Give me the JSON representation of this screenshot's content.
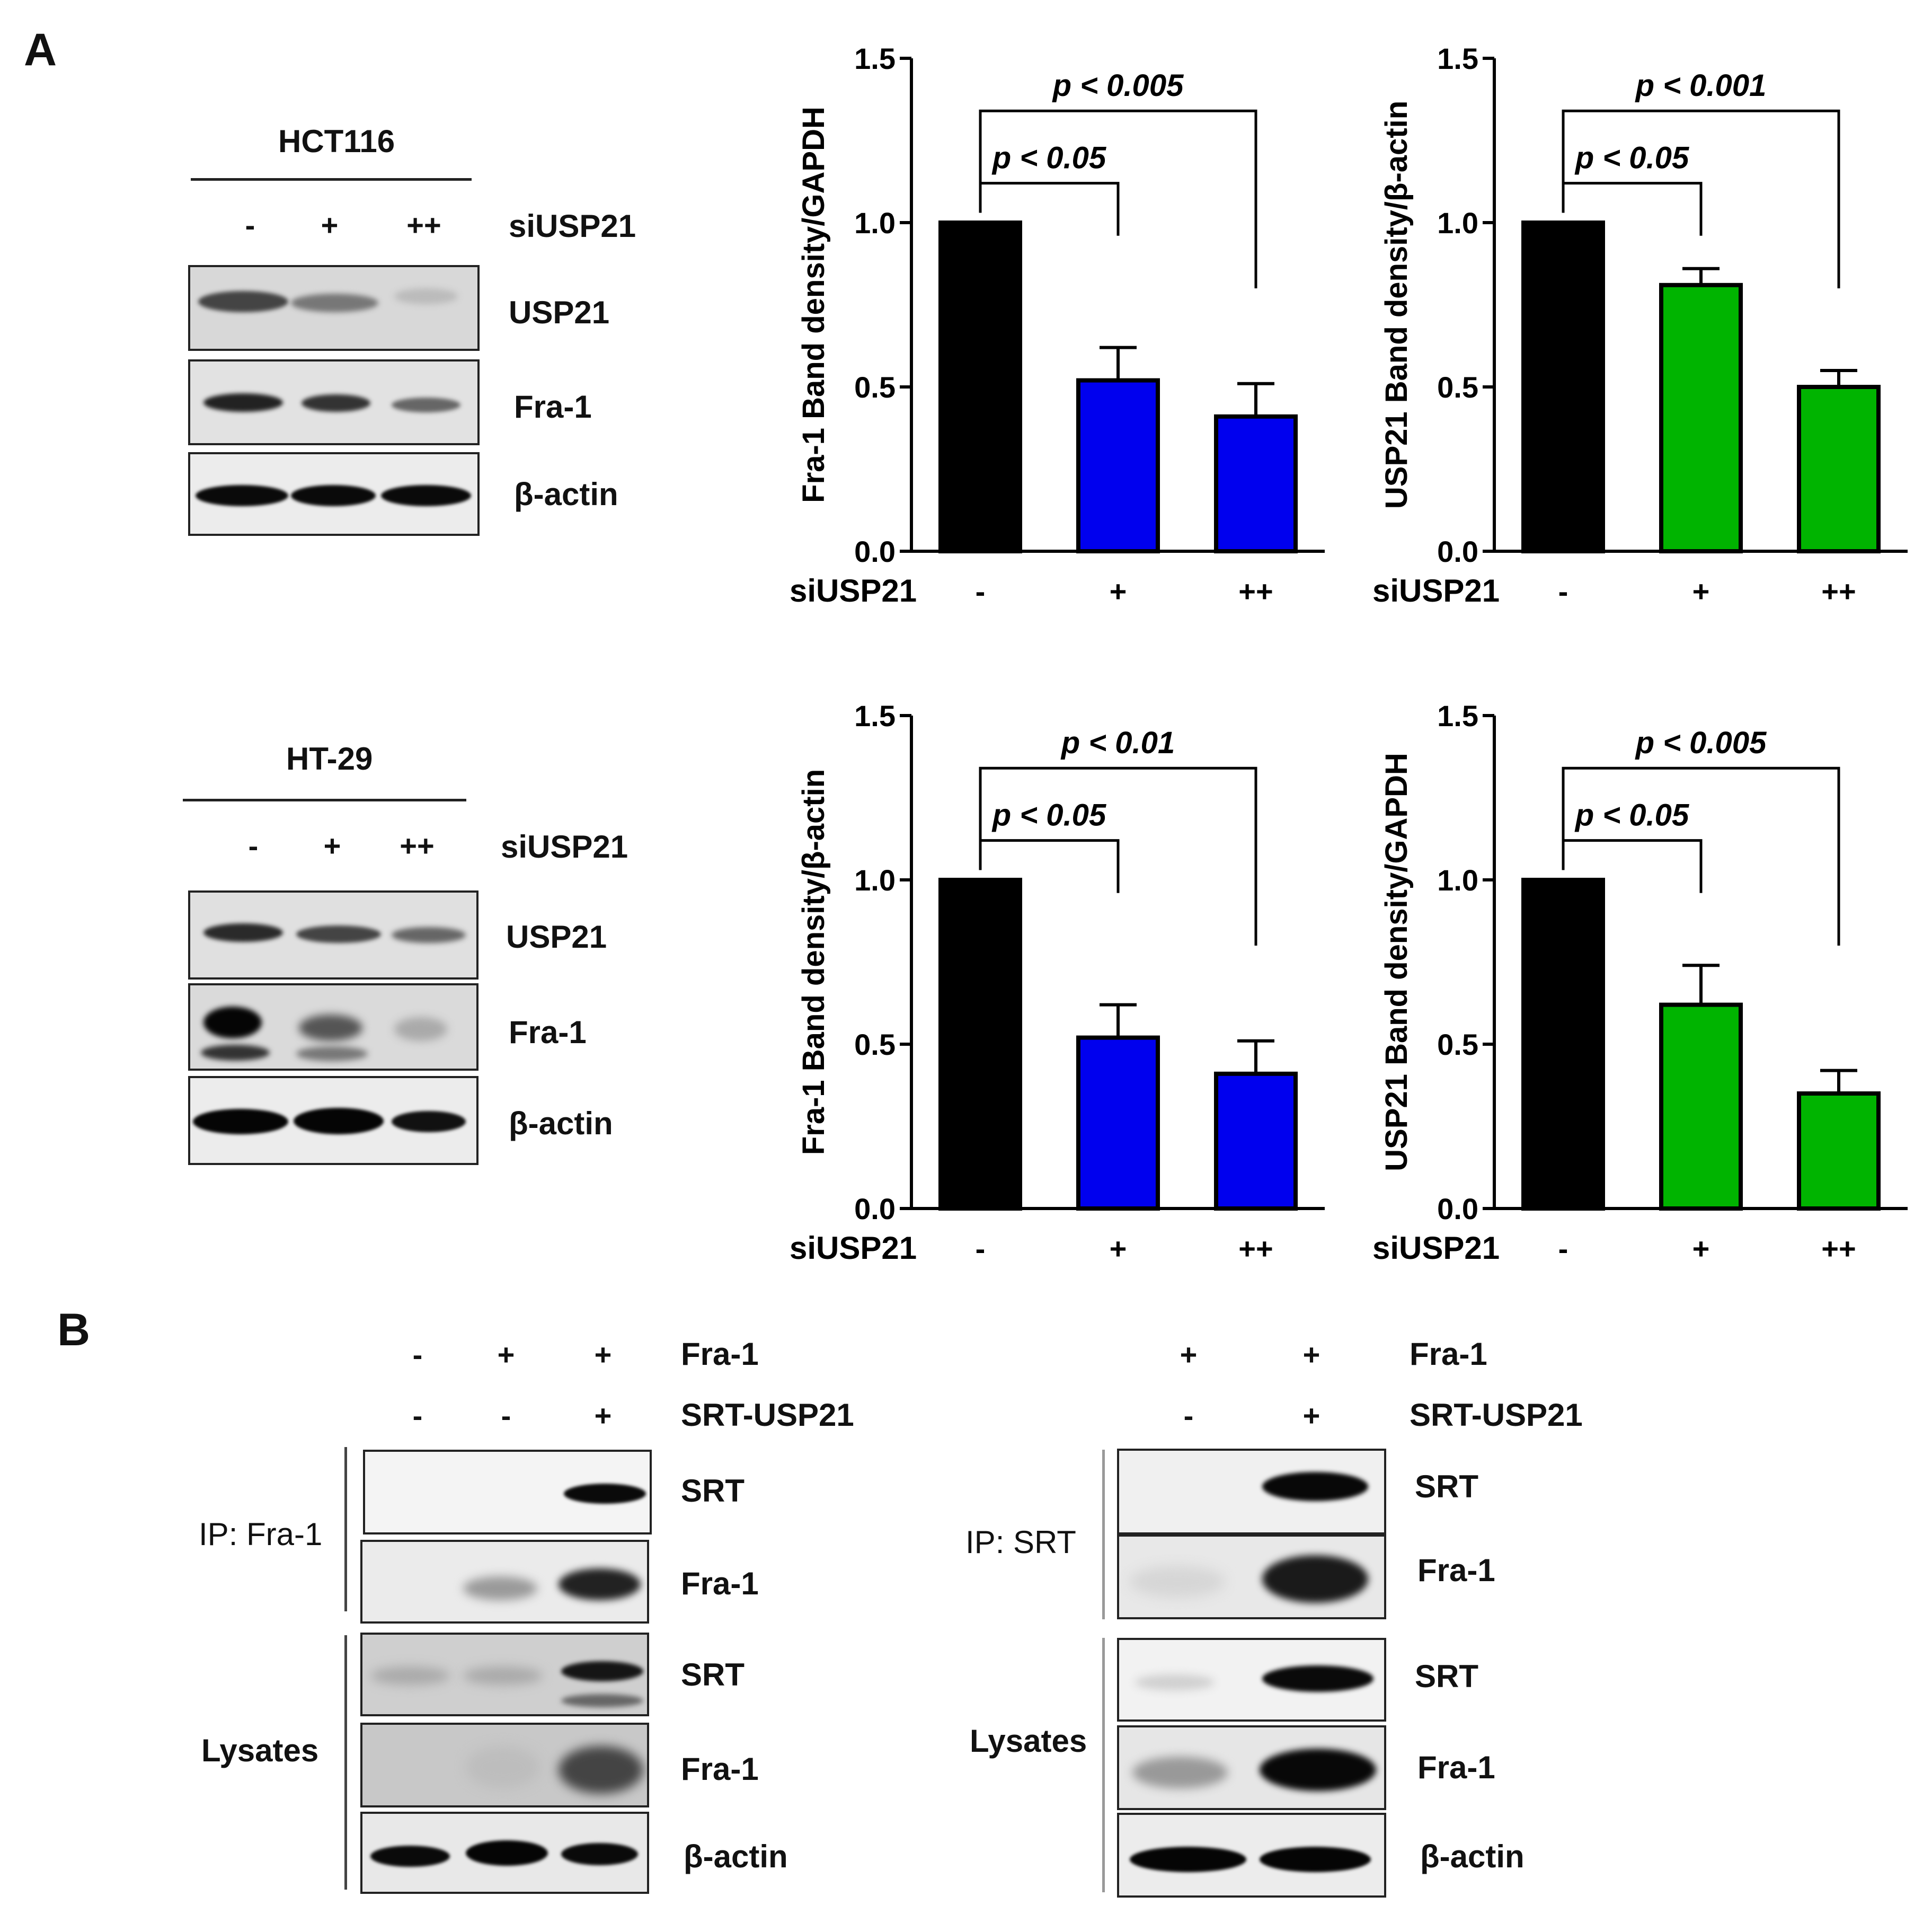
{
  "panel_a": {
    "letter": "A",
    "blots": [
      {
        "cell_line": "HCT116",
        "lanes": [
          "-",
          "+",
          "++"
        ],
        "treatment": "siUSP21",
        "rows": [
          "USP21",
          "Fra-1",
          "β-actin"
        ]
      },
      {
        "cell_line": "HT-29",
        "lanes": [
          "-",
          "+",
          "++"
        ],
        "treatment": "siUSP21",
        "rows": [
          "USP21",
          "Fra-1",
          "β-actin"
        ]
      }
    ]
  },
  "panel_b": {
    "letter": "B",
    "left": {
      "conditions": [
        {
          "name": "Fra-1",
          "lanes": [
            "-",
            "+",
            "+"
          ]
        },
        {
          "name": "SRT-USP21",
          "lanes": [
            "-",
            "-",
            "+"
          ]
        }
      ],
      "groups": [
        {
          "label": "IP: Fra-1",
          "rows": [
            "SRT",
            "Fra-1"
          ]
        },
        {
          "label": "Lysates",
          "rows": [
            "SRT",
            "Fra-1",
            "β-actin"
          ]
        }
      ]
    },
    "right": {
      "conditions": [
        {
          "name": "Fra-1",
          "lanes": [
            "+",
            "+"
          ]
        },
        {
          "name": "SRT-USP21",
          "lanes": [
            "-",
            "+"
          ]
        }
      ],
      "groups": [
        {
          "label": "IP: SRT",
          "rows": [
            "SRT",
            "Fra-1"
          ]
        },
        {
          "label": "Lysates",
          "rows": [
            "SRT",
            "Fra-1",
            "β-actin"
          ]
        }
      ]
    }
  },
  "chart_data": [
    {
      "type": "bar",
      "ylabel": "Fra-1 Band density/GAPDH",
      "xlabel": "siUSP21",
      "categories": [
        "-",
        "+",
        "++"
      ],
      "values": [
        1.0,
        0.52,
        0.41
      ],
      "errors": [
        0,
        0.1,
        0.1
      ],
      "colors": [
        "#000000",
        "#0000ee",
        "#0000ee"
      ],
      "ylim": [
        0,
        1.5
      ],
      "yticks": [
        "0.0",
        "0.5",
        "1.0",
        "1.5"
      ],
      "annotations": [
        {
          "text": "p < 0.05",
          "from": 0,
          "to": 1
        },
        {
          "text": "p < 0.005",
          "from": 0,
          "to": 2
        }
      ]
    },
    {
      "type": "bar",
      "ylabel": "USP21 Band density/β-actin",
      "xlabel": "siUSP21",
      "categories": [
        "-",
        "+",
        "++"
      ],
      "values": [
        1.0,
        0.81,
        0.5
      ],
      "errors": [
        0,
        0.05,
        0.05
      ],
      "colors": [
        "#000000",
        "#00b400",
        "#00b400"
      ],
      "ylim": [
        0,
        1.5
      ],
      "yticks": [
        "0.0",
        "0.5",
        "1.0",
        "1.5"
      ],
      "annotations": [
        {
          "text": "p < 0.05",
          "from": 0,
          "to": 1
        },
        {
          "text": "p < 0.001",
          "from": 0,
          "to": 2
        }
      ]
    },
    {
      "type": "bar",
      "ylabel": "Fra-1 Band density/β-actin",
      "xlabel": "siUSP21",
      "categories": [
        "-",
        "+",
        "++"
      ],
      "values": [
        1.0,
        0.52,
        0.41
      ],
      "errors": [
        0,
        0.1,
        0.1
      ],
      "colors": [
        "#000000",
        "#0000ee",
        "#0000ee"
      ],
      "ylim": [
        0,
        1.5
      ],
      "yticks": [
        "0.0",
        "0.5",
        "1.0",
        "1.5"
      ],
      "annotations": [
        {
          "text": "p < 0.05",
          "from": 0,
          "to": 1
        },
        {
          "text": "p < 0.01",
          "from": 0,
          "to": 2
        }
      ]
    },
    {
      "type": "bar",
      "ylabel": "USP21 Band density/GAPDH",
      "xlabel": "siUSP21",
      "categories": [
        "-",
        "+",
        "++"
      ],
      "values": [
        1.0,
        0.62,
        0.35
      ],
      "errors": [
        0,
        0.12,
        0.07
      ],
      "colors": [
        "#000000",
        "#00b400",
        "#00b400"
      ],
      "ylim": [
        0,
        1.5
      ],
      "yticks": [
        "0.0",
        "0.5",
        "1.0",
        "1.5"
      ],
      "annotations": [
        {
          "text": "p < 0.05",
          "from": 0,
          "to": 1
        },
        {
          "text": "p < 0.005",
          "from": 0,
          "to": 2
        }
      ]
    }
  ]
}
